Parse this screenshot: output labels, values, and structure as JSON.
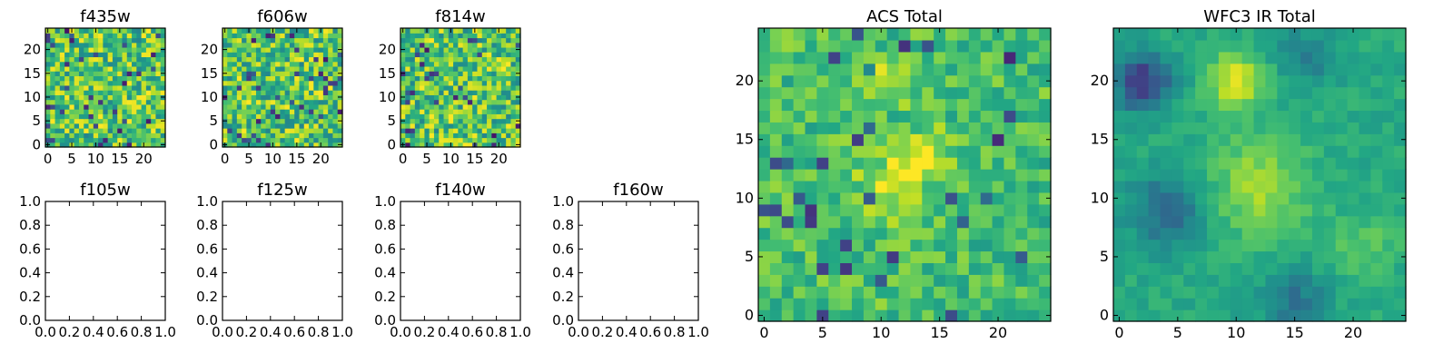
{
  "chart_data": [
    {
      "type": "heatmap",
      "title": "f435w",
      "xlim": [
        -0.5,
        24.5
      ],
      "ylim": [
        -0.5,
        24.5
      ],
      "x_ticks": [
        0,
        5,
        10,
        15,
        20
      ],
      "y_ticks": [
        0,
        5,
        10,
        15,
        20
      ],
      "grid_size": [
        25,
        25
      ],
      "colormap": "viridis",
      "pattern": "noise",
      "seed": 11
    },
    {
      "type": "heatmap",
      "title": "f606w",
      "xlim": [
        -0.5,
        24.5
      ],
      "ylim": [
        -0.5,
        24.5
      ],
      "x_ticks": [
        0,
        5,
        10,
        15,
        20
      ],
      "y_ticks": [
        0,
        5,
        10,
        15,
        20
      ],
      "grid_size": [
        25,
        25
      ],
      "colormap": "viridis",
      "pattern": "noise",
      "seed": 23
    },
    {
      "type": "heatmap",
      "title": "f814w",
      "xlim": [
        -0.5,
        24.5
      ],
      "ylim": [
        -0.5,
        24.5
      ],
      "x_ticks": [
        0,
        5,
        10,
        15,
        20
      ],
      "y_ticks": [
        0,
        5,
        10,
        15,
        20
      ],
      "grid_size": [
        25,
        25
      ],
      "colormap": "viridis",
      "pattern": "noise",
      "seed": 37
    },
    {
      "type": "empty",
      "title": "f105w",
      "xlim": [
        0,
        1
      ],
      "ylim": [
        0,
        1
      ],
      "x_ticks": [
        "0.0",
        "0.2",
        "0.4",
        "0.6",
        "0.8",
        "1.0"
      ],
      "y_ticks": [
        "0.0",
        "0.2",
        "0.4",
        "0.6",
        "0.8",
        "1.0"
      ]
    },
    {
      "type": "empty",
      "title": "f125w",
      "xlim": [
        0,
        1
      ],
      "ylim": [
        0,
        1
      ],
      "x_ticks": [
        "0.0",
        "0.2",
        "0.4",
        "0.6",
        "0.8",
        "1.0"
      ],
      "y_ticks": [
        "0.0",
        "0.2",
        "0.4",
        "0.6",
        "0.8",
        "1.0"
      ]
    },
    {
      "type": "empty",
      "title": "f140w",
      "xlim": [
        0,
        1
      ],
      "ylim": [
        0,
        1
      ],
      "x_ticks": [
        "0.0",
        "0.2",
        "0.4",
        "0.6",
        "0.8",
        "1.0"
      ],
      "y_ticks": [
        "0.0",
        "0.2",
        "0.4",
        "0.6",
        "0.8",
        "1.0"
      ]
    },
    {
      "type": "empty",
      "title": "f160w",
      "xlim": [
        0,
        1
      ],
      "ylim": [
        0,
        1
      ],
      "x_ticks": [
        "0.0",
        "0.2",
        "0.4",
        "0.6",
        "0.8",
        "1.0"
      ],
      "y_ticks": [
        "0.0",
        "0.2",
        "0.4",
        "0.6",
        "0.8",
        "1.0"
      ]
    },
    {
      "type": "heatmap",
      "title": "ACS Total",
      "xlim": [
        -0.5,
        24.5
      ],
      "ylim": [
        -0.5,
        24.5
      ],
      "x_ticks": [
        0,
        5,
        10,
        15,
        20
      ],
      "y_ticks": [
        0,
        5,
        10,
        15,
        20
      ],
      "grid_size": [
        25,
        25
      ],
      "colormap": "viridis",
      "pattern": "acs",
      "seed": 53
    },
    {
      "type": "heatmap",
      "title": "WFC3 IR Total",
      "xlim": [
        -0.5,
        24.5
      ],
      "ylim": [
        -0.5,
        24.5
      ],
      "x_ticks": [
        0,
        5,
        10,
        15,
        20
      ],
      "y_ticks": [
        0,
        5,
        10,
        15,
        20
      ],
      "grid_size": [
        25,
        25
      ],
      "colormap": "viridis",
      "pattern": "wfc3",
      "seed": 71
    }
  ]
}
